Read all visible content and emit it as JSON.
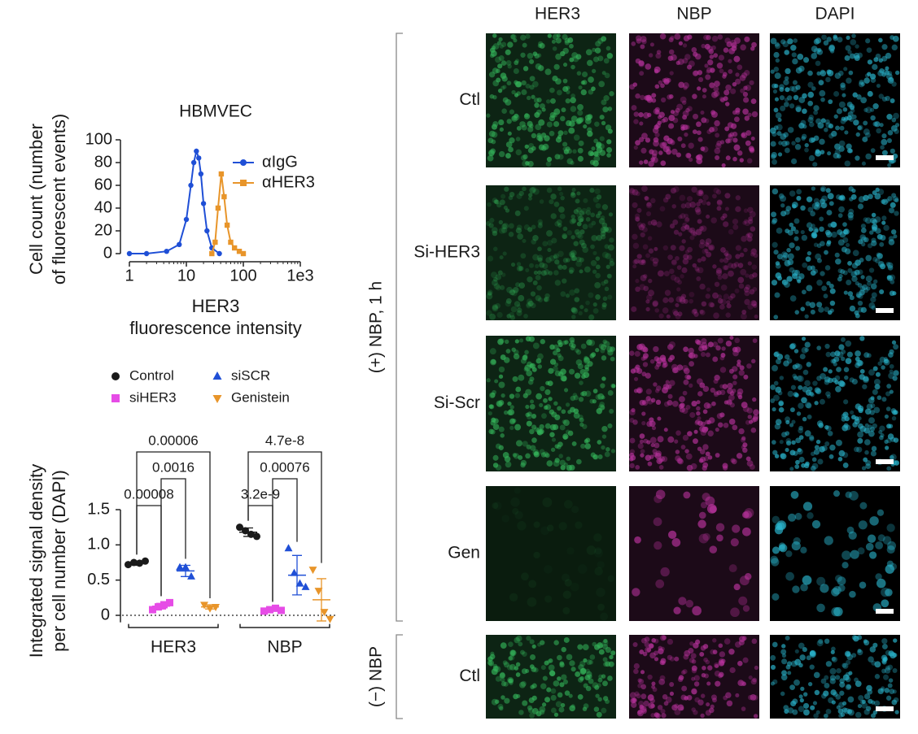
{
  "chart_data": [
    {
      "type": "line",
      "title": "HBMVEC",
      "y_label": [
        "Cell count (number",
        "of fluorescent events)"
      ],
      "x_label": [
        "HER3",
        "fluorescence intensity"
      ],
      "xscale": "log",
      "xlim": [
        1,
        1000
      ],
      "xticks": [
        1,
        10,
        100,
        {
          "value": 1000,
          "label": "1e3"
        }
      ],
      "ylim": [
        0,
        100
      ],
      "yticks": [
        0,
        20,
        40,
        60,
        80,
        100
      ],
      "legend": "upper right",
      "series": [
        {
          "name": "αIgG",
          "color": "#1f4fd6",
          "marker": "circle",
          "x": [
            1,
            2,
            4.5,
            7.5,
            10,
            12,
            13.5,
            15,
            16.5,
            18,
            20,
            23,
            28,
            38
          ],
          "values": [
            0,
            0,
            2,
            8,
            30,
            60,
            80,
            90,
            84,
            70,
            44,
            20,
            5,
            0
          ]
        },
        {
          "name": "αHER3",
          "color": "#e8952a",
          "marker": "square",
          "x": [
            28,
            32,
            36,
            41,
            46,
            52,
            60,
            70,
            85,
            100
          ],
          "values": [
            0,
            10,
            40,
            70,
            50,
            25,
            10,
            5,
            2,
            0
          ]
        }
      ]
    },
    {
      "type": "dot",
      "y_label": [
        "Integrated signal density",
        "per cell number (DAPI)"
      ],
      "categories": [
        "HER3",
        "NBP"
      ],
      "ylim": [
        -0.1,
        1.5
      ],
      "yticks": [
        0,
        0.5,
        {
          "value": 1,
          "label": "1.0"
        },
        1.5
      ],
      "zero_line": true,
      "legend_columns": 2,
      "series": [
        {
          "name": "Control",
          "color": "#1a1a1a",
          "marker": "circle",
          "values": [
            [
              0.72,
              0.75,
              0.74,
              0.77
            ],
            [
              1.25,
              1.2,
              1.15,
              1.12
            ]
          ],
          "mean": [
            0.74,
            1.18
          ],
          "sd": [
            0.03,
            0.06
          ]
        },
        {
          "name": "siHER3",
          "color": "#e64ce6",
          "marker": "square",
          "values": [
            [
              0.08,
              0.12,
              0.15,
              0.18
            ],
            [
              0.06,
              0.08,
              0.1,
              0.07
            ]
          ],
          "mean": [
            0.13,
            0.08
          ],
          "sd": [
            0.04,
            0.02
          ]
        },
        {
          "name": "siSCR",
          "color": "#1f4fd6",
          "marker": "triangle-up",
          "values": [
            [
              0.68,
              0.68,
              0.55
            ],
            [
              0.95,
              0.6,
              0.45,
              0.4
            ]
          ],
          "mean": [
            0.63,
            0.57
          ],
          "sd": [
            0.08,
            0.28
          ]
        },
        {
          "name": "Genistein",
          "color": "#e8952a",
          "marker": "triangle-down",
          "values": [
            [
              0.15,
              0.1,
              0.12
            ],
            [
              0.65,
              0.35,
              0.05,
              -0.05
            ]
          ],
          "mean": [
            0.12,
            0.22
          ],
          "sd": [
            0.03,
            0.3
          ]
        }
      ],
      "comparisons": [
        [
          {
            "pair": [
              "Control",
              "siHER3"
            ],
            "label": "0.00008"
          },
          {
            "pair": [
              "siHER3",
              "siSCR"
            ],
            "label": "0.0016"
          },
          {
            "pair": [
              "Control",
              "Genistein"
            ],
            "label": "0.00006"
          }
        ],
        [
          {
            "pair": [
              "Control",
              "siHER3"
            ],
            "label": "3.2e-9"
          },
          {
            "pair": [
              "siHER3",
              "siSCR"
            ],
            "label": "0.00076"
          },
          {
            "pair": [
              "Control",
              "Genistein"
            ],
            "label": "4.7e-8"
          }
        ]
      ]
    }
  ],
  "image_panel": {
    "columns": [
      {
        "label": "HER3",
        "color": "#34b45a"
      },
      {
        "label": "NBP",
        "color": "#b8329c"
      },
      {
        "label": "DAPI",
        "color": "#2ab4cc"
      }
    ],
    "groups": [
      {
        "label": "(+) NBP, 1 h",
        "rows": [
          "Ctl",
          "Si-HER3",
          "Si-Scr",
          "Gen"
        ]
      },
      {
        "label": "(−) NBP",
        "rows": [
          "Ctl"
        ]
      }
    ]
  }
}
